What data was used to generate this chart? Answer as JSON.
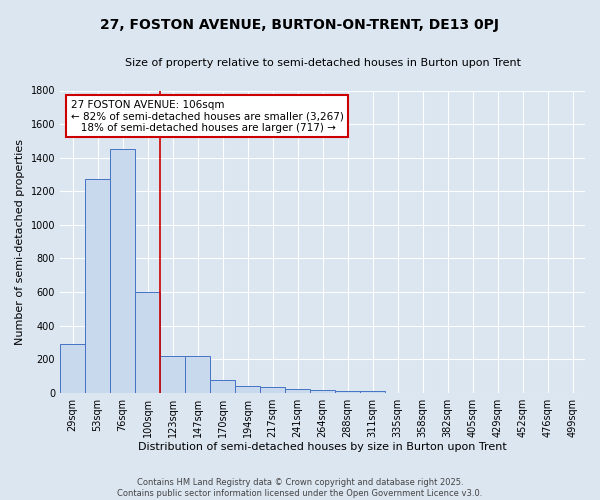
{
  "title": "27, FOSTON AVENUE, BURTON-ON-TRENT, DE13 0PJ",
  "subtitle": "Size of property relative to semi-detached houses in Burton upon Trent",
  "xlabel": "Distribution of semi-detached houses by size in Burton upon Trent",
  "ylabel": "Number of semi-detached properties",
  "categories": [
    "29sqm",
    "53sqm",
    "76sqm",
    "100sqm",
    "123sqm",
    "147sqm",
    "170sqm",
    "194sqm",
    "217sqm",
    "241sqm",
    "264sqm",
    "288sqm",
    "311sqm",
    "335sqm",
    "358sqm",
    "382sqm",
    "405sqm",
    "429sqm",
    "452sqm",
    "476sqm",
    "499sqm"
  ],
  "values": [
    290,
    1270,
    1450,
    600,
    220,
    220,
    75,
    38,
    35,
    25,
    15,
    10,
    10,
    0,
    0,
    0,
    0,
    0,
    0,
    0,
    0
  ],
  "bar_color": "#c8d9ed",
  "bar_edge_color": "#4472c4",
  "background_color": "#dce6f1",
  "grid_color": "#ffffff",
  "vline_x_index": 3,
  "vline_color": "#cc0000",
  "annotation_line1": "27 FOSTON AVENUE: 106sqm",
  "annotation_line2": "← 82% of semi-detached houses are smaller (3,267)",
  "annotation_line3": "18% of semi-detached houses are larger (717) →",
  "annotation_box_color": "#ffffff",
  "annotation_box_edge": "#cc0000",
  "ylim": [
    0,
    1800
  ],
  "yticks": [
    0,
    200,
    400,
    600,
    800,
    1000,
    1200,
    1400,
    1600,
    1800
  ],
  "footer_line1": "Contains HM Land Registry data © Crown copyright and database right 2025.",
  "footer_line2": "Contains public sector information licensed under the Open Government Licence v3.0.",
  "title_fontsize": 10,
  "subtitle_fontsize": 8,
  "ylabel_fontsize": 8,
  "xlabel_fontsize": 8,
  "tick_fontsize": 7,
  "annotation_fontsize": 7.5,
  "footer_fontsize": 6
}
